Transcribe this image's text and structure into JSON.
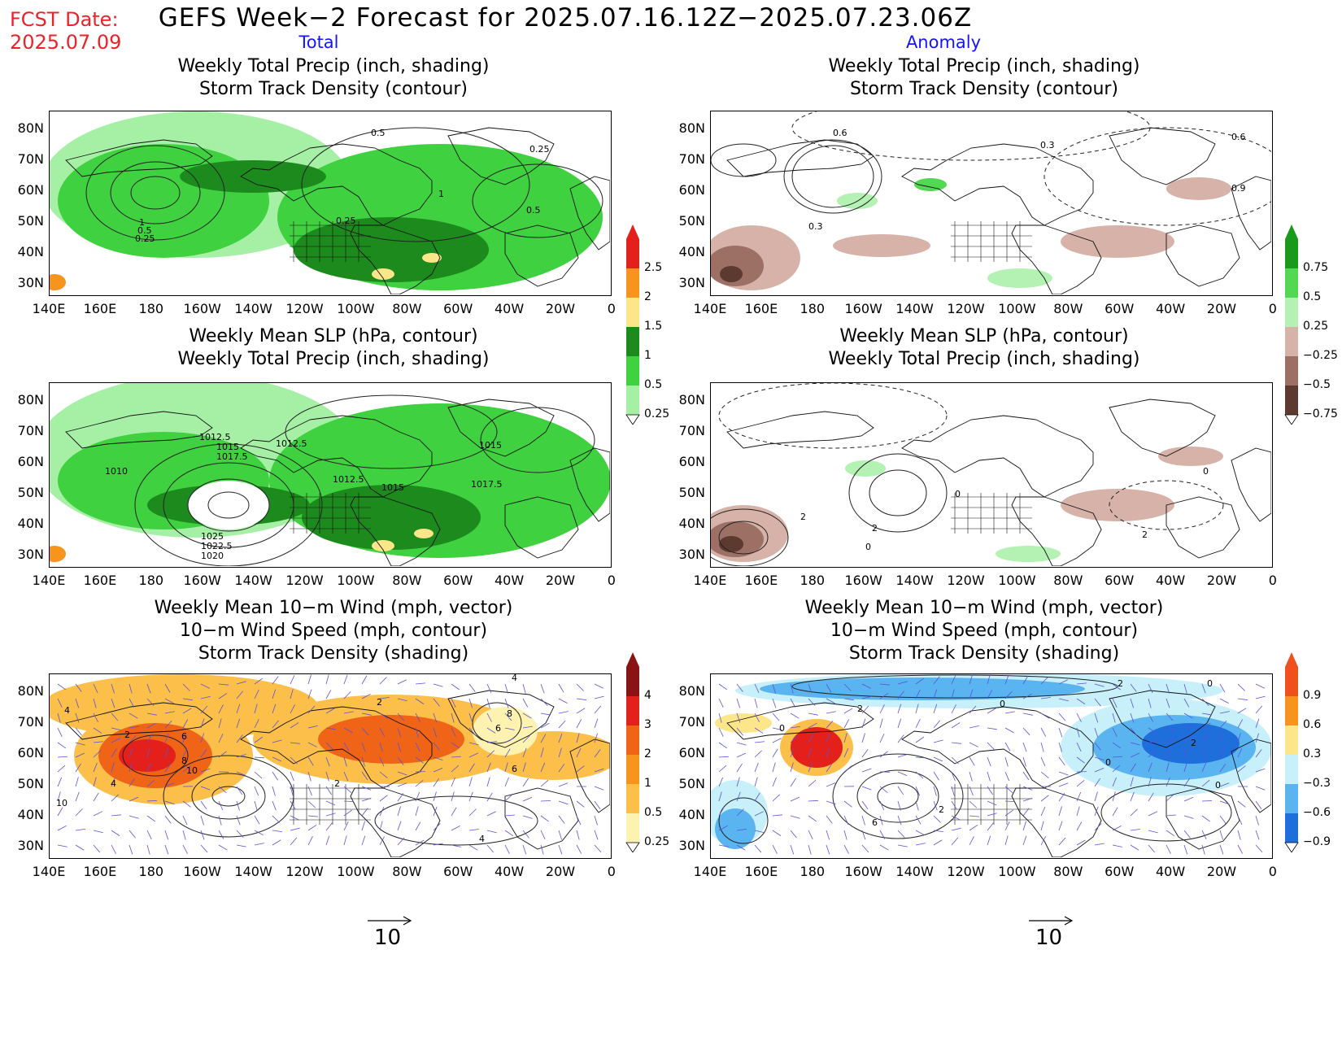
{
  "header": {
    "fcst_label": "FCST Date:",
    "fcst_date": "2025.07.09",
    "title": "GEFS Week−2 Forecast for 2025.07.16.12Z−2025.07.23.06Z",
    "col_left": "Total",
    "col_right": "Anomaly"
  },
  "panels": {
    "p1": {
      "title1": "Weekly Total Precip (inch, shading)",
      "title2": "Storm Track Density (contour)"
    },
    "p2": {
      "title1": "Weekly Total Precip (inch, shading)",
      "title2": "Storm Track Density (contour)"
    },
    "p3": {
      "title1": "Weekly Mean SLP (hPa, contour)",
      "title2": "Weekly Total Precip (inch, shading)"
    },
    "p4": {
      "title1": "Weekly Mean SLP (hPa, contour)",
      "title2": "Weekly Total Precip (inch, shading)"
    },
    "p5": {
      "title1": "Weekly Mean 10−m Wind (mph, vector)",
      "title2": "10−m Wind Speed (mph, contour)",
      "title3": "Storm Track Density (shading)"
    },
    "p6": {
      "title1": "Weekly Mean 10−m Wind (mph, vector)",
      "title2": "10−m Wind Speed (mph, contour)",
      "title3": "Storm Track Density (shading)"
    }
  },
  "axes": {
    "lat": [
      "80N",
      "70N",
      "60N",
      "50N",
      "40N",
      "30N"
    ],
    "lon": [
      "140E",
      "160E",
      "180",
      "160W",
      "140W",
      "120W",
      "100W",
      "80W",
      "60W",
      "40W",
      "20W",
      "0"
    ]
  },
  "contour_labels": {
    "p1": [
      "0.5",
      "0.25",
      "1",
      "0.5",
      "0.25",
      "0.25",
      "0.5",
      "1"
    ],
    "p2": [
      "0.6",
      "0.3",
      "0.6",
      "0.9",
      "0.3"
    ],
    "p3": [
      "1012.5",
      "1015",
      "1017.5",
      "1010",
      "1012.5",
      "1012.5",
      "1015",
      "1015",
      "1017.5",
      "1025",
      "1022.5",
      "1020"
    ],
    "p4": [
      "0",
      "2",
      "2",
      "2",
      "0",
      "0"
    ],
    "p5": [
      "4",
      "2",
      "6",
      "8",
      "10",
      "4",
      "10",
      "2",
      "4",
      "6",
      "8",
      "6",
      "4",
      "2"
    ],
    "p6": [
      "2",
      "0",
      "0",
      "2",
      "0",
      "0",
      "2",
      "6",
      "0",
      "2"
    ]
  },
  "colorbars": {
    "precip_total": {
      "labels": [
        "2.5",
        "2",
        "1.5",
        "1",
        "0.5",
        "0.25"
      ],
      "colors": [
        "#e3201c",
        "#f7941d",
        "#fde68a",
        "#1d8a1d",
        "#3fd13f",
        "#a6f0a6"
      ]
    },
    "precip_anom": {
      "labels": [
        "0.75",
        "0.5",
        "0.25",
        "−0.25",
        "−0.5",
        "−0.75"
      ],
      "colors": [
        "#1a9a1a",
        "#52d852",
        "#b4f2b4",
        "#d6b2a8",
        "#9c7064",
        "#5c3a30"
      ]
    },
    "storm_total": {
      "labels": [
        "4",
        "3",
        "2",
        "1",
        "0.5",
        "0.25"
      ],
      "colors": [
        "#8a1414",
        "#e3201c",
        "#f06418",
        "#f7941d",
        "#fbbf4a",
        "#fef2b0"
      ]
    },
    "storm_anom": {
      "labels": [
        "0.9",
        "0.6",
        "0.3",
        "−0.3",
        "−0.6",
        "−0.9"
      ],
      "colors": [
        "#f0501e",
        "#f7941d",
        "#fde68a",
        "#c8f0fa",
        "#5ab4f0",
        "#1e6edc"
      ]
    }
  },
  "vector_ref": {
    "left": "10",
    "right": "10"
  }
}
